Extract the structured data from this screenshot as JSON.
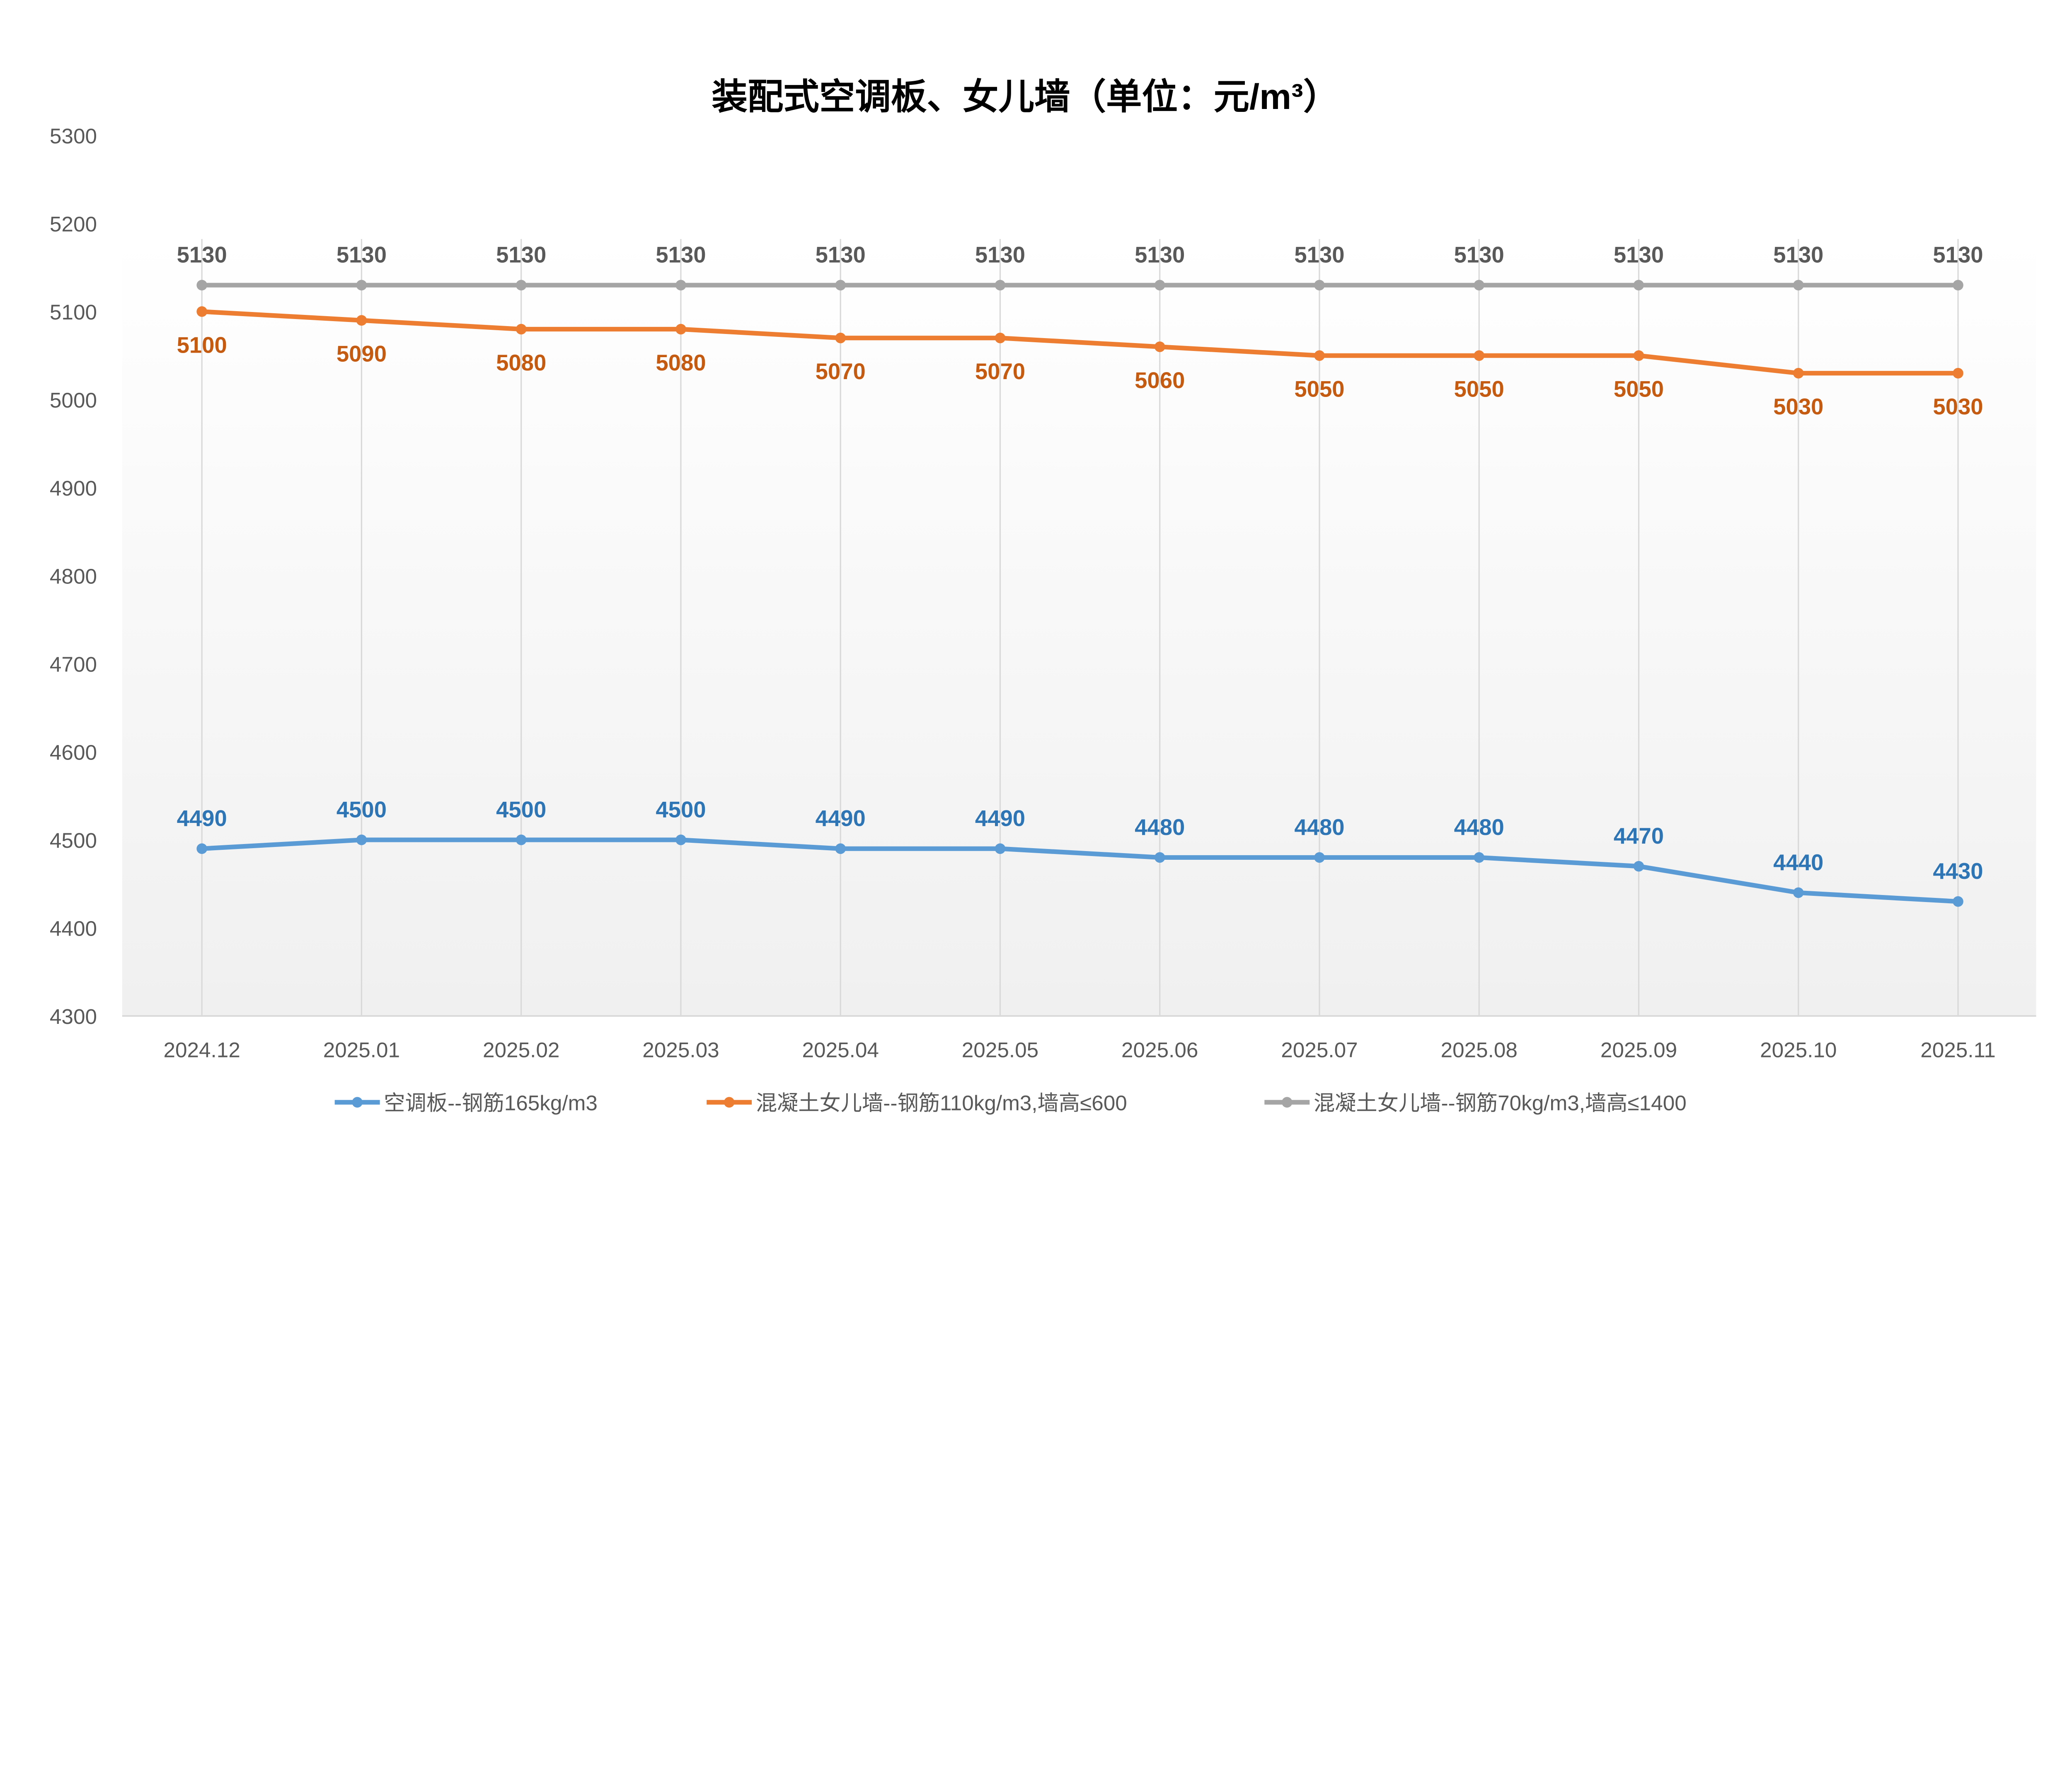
{
  "chart_data": {
    "type": "line",
    "title": "装配式空调板、女儿墙（单位：元/m³）",
    "xlabel": "",
    "ylabel": "",
    "categories": [
      "2024.12",
      "2025.01",
      "2025.02",
      "2025.03",
      "2025.04",
      "2025.05",
      "2025.06",
      "2025.07",
      "2025.08",
      "2025.09",
      "2025.10",
      "2025.11"
    ],
    "ylim": [
      4300,
      5300
    ],
    "yticks": [
      4300,
      4400,
      4500,
      4600,
      4700,
      4800,
      4900,
      5000,
      5100,
      5200,
      5300
    ],
    "grid": "vertical",
    "legend_position": "bottom",
    "data_labels": true,
    "series": [
      {
        "name": "空调板--钢筋165kg/m3",
        "color": "#5b9bd5",
        "label_color": "#2e75b6",
        "label_pos": "above",
        "values": [
          4490,
          4500,
          4500,
          4500,
          4490,
          4490,
          4480,
          4480,
          4480,
          4470,
          4440,
          4430
        ]
      },
      {
        "name": "混凝土女儿墙--钢筋110kg/m3,墙高≤600",
        "color": "#ed7d31",
        "label_color": "#c55a11",
        "label_pos": "below",
        "values": [
          5100,
          5090,
          5080,
          5080,
          5070,
          5070,
          5060,
          5050,
          5050,
          5050,
          5030,
          5030
        ]
      },
      {
        "name": "混凝土女儿墙--钢筋70kg/m3,墙高≤1400",
        "color": "#a5a5a5",
        "label_color": "#595959",
        "label_pos": "above",
        "values": [
          5130,
          5130,
          5130,
          5130,
          5130,
          5130,
          5130,
          5130,
          5130,
          5130,
          5130,
          5130
        ]
      }
    ]
  }
}
